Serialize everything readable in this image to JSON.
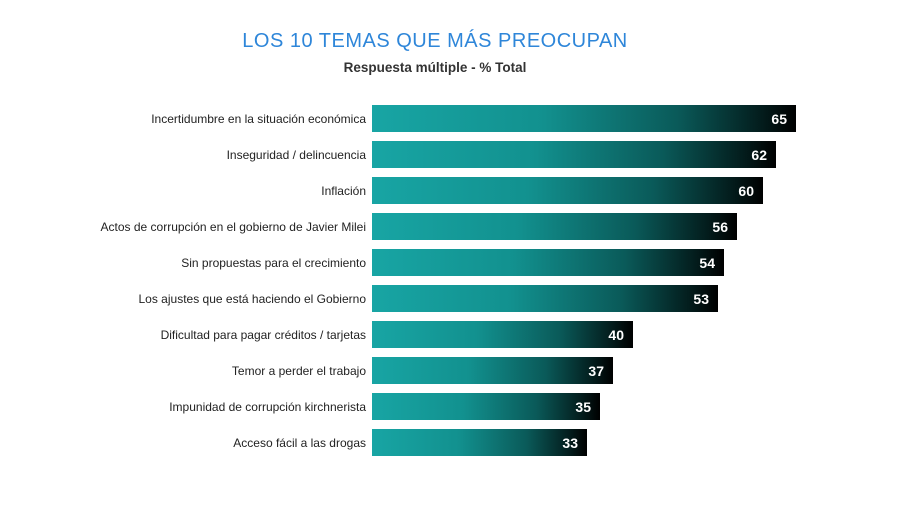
{
  "header": {
    "title": "LOS 10 TEMAS QUE MÁS PREOCUPAN",
    "subtitle": "Respuesta múltiple - % Total"
  },
  "colors": {
    "title_blue": "#2e86d9",
    "subtitle_text": "#333333",
    "category_text": "#222222",
    "value_text": "#ffffff",
    "bar_gradient": [
      "#18a5a4",
      "#12918f",
      "#0a5a59",
      "#031c1c",
      "#000000"
    ]
  },
  "chart_data": {
    "type": "bar",
    "orientation": "horizontal",
    "title": "LOS 10 TEMAS QUE MÁS PREOCUPAN",
    "subtitle": "Respuesta múltiple - % Total",
    "categories": [
      "Incertidumbre en la situación económica",
      "Inseguridad / delincuencia",
      "Inflación",
      "Actos de corrupción en el gobierno de Javier Milei",
      "Sin propuestas para el crecimiento",
      "Los ajustes que está haciendo el Gobierno",
      "Dificultad para pagar créditos / tarjetas",
      "Temor a perder el trabajo",
      "Impunidad de corrupción kirchnerista",
      "Acceso fácil a las drogas"
    ],
    "values": [
      65,
      62,
      60,
      56,
      54,
      53,
      40,
      37,
      35,
      33
    ],
    "xlim": [
      0,
      65
    ],
    "value_labels_shown": true,
    "grid": false,
    "legend": "none",
    "axis_ticks": "none"
  }
}
